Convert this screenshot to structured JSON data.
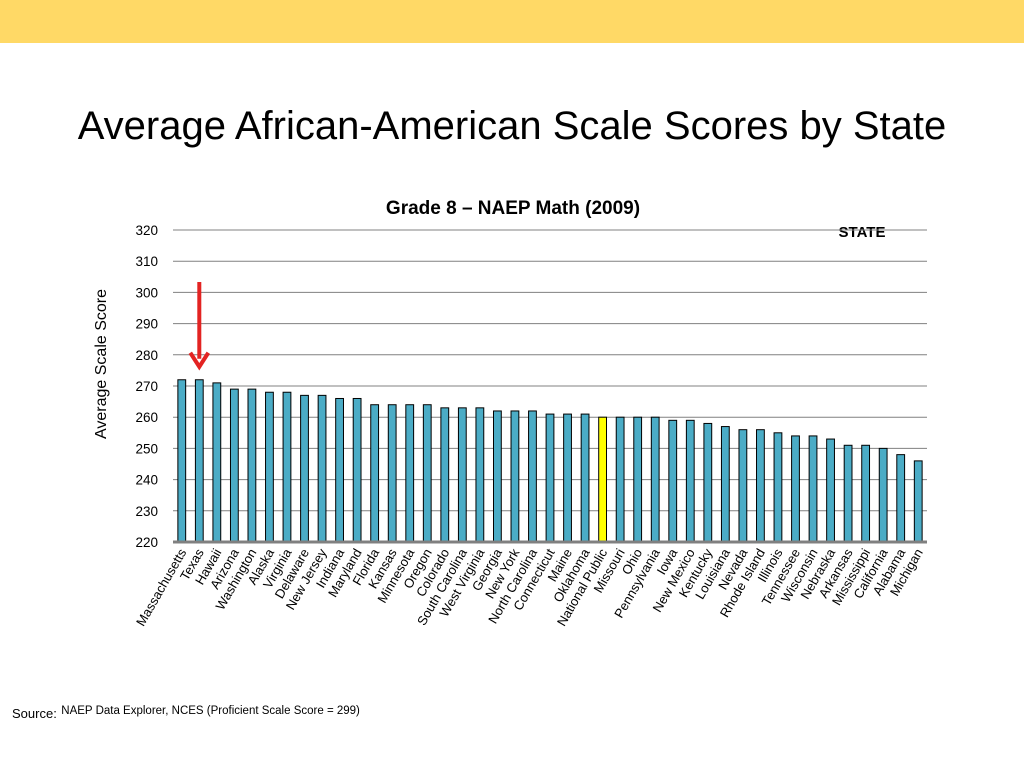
{
  "slide": {
    "title": "Average African-American Scale Scores by State",
    "band_color": "#FFD966",
    "source_label": "Source:",
    "source_text": "NAEP Data Explorer, NCES (Proficient Scale Score = 299)"
  },
  "chart_data": {
    "type": "bar",
    "title": "Grade 8 – NAEP Math (2009)",
    "ylabel": "Average Scale Score",
    "xlabel": "",
    "ylim": [
      220,
      320
    ],
    "yticks": [
      220,
      230,
      240,
      250,
      260,
      270,
      280,
      290,
      300,
      310,
      320
    ],
    "grid": true,
    "legend_text": "STATE",
    "legend_position": "top-right",
    "bar_color": "#4BACC6",
    "highlight_color": "#FFFF00",
    "highlight_category": "National Public",
    "arrow_color": "#E32322",
    "arrow_target": "Texas",
    "categories": [
      "Massachusetts",
      "Texas",
      "Hawaii",
      "Arizona",
      "Washington",
      "Alaska",
      "Virginia",
      "Delaware",
      "New Jersey",
      "Indiana",
      "Maryland",
      "Florida",
      "Kansas",
      "Minnesota",
      "Oregon",
      "Colorado",
      "South Carolina",
      "West Virginia",
      "Georgia",
      "New York",
      "North Carolina",
      "Connecticut",
      "Maine",
      "Oklahoma",
      "National Public",
      "Missouri",
      "Ohio",
      "Pennsylvania",
      "Iowa",
      "New Mexico",
      "Kentucky",
      "Louisiana",
      "Nevada",
      "Rhode Island",
      "Illinois",
      "Tennessee",
      "Wisconsin",
      "Nebraska",
      "Arkansas",
      "Mississippi",
      "California",
      "Alabama",
      "Michigan"
    ],
    "values": [
      272,
      272,
      271,
      269,
      269,
      268,
      268,
      267,
      267,
      266,
      266,
      264,
      264,
      264,
      264,
      263,
      263,
      263,
      262,
      262,
      262,
      261,
      261,
      261,
      260,
      260,
      260,
      260,
      259,
      259,
      258,
      257,
      256,
      256,
      255,
      254,
      254,
      253,
      251,
      251,
      250,
      248,
      246
    ]
  }
}
